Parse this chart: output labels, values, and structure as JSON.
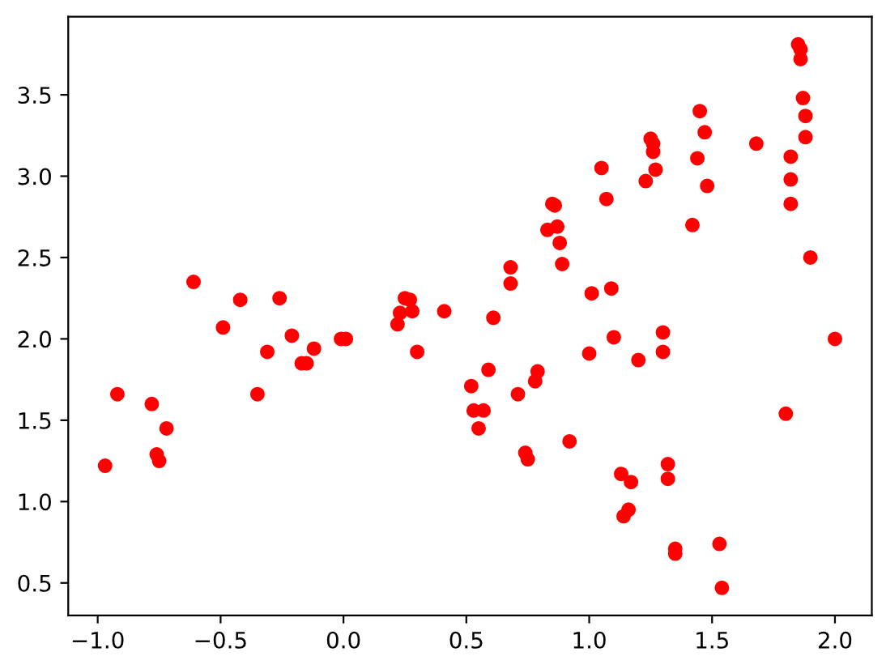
{
  "chart_data": {
    "type": "scatter",
    "marker": "circle",
    "grid": false,
    "legend": false,
    "xlim": [
      -1.12,
      2.15
    ],
    "ylim": [
      0.3,
      3.98
    ],
    "xticks": [
      {
        "value": -1.0,
        "label": "−1.0"
      },
      {
        "value": -0.5,
        "label": "−0.5"
      },
      {
        "value": 0.0,
        "label": "0.0"
      },
      {
        "value": 0.5,
        "label": "0.5"
      },
      {
        "value": 1.0,
        "label": "1.0"
      },
      {
        "value": 1.5,
        "label": "1.5"
      },
      {
        "value": 2.0,
        "label": "2.0"
      }
    ],
    "yticks": [
      {
        "value": 0.5,
        "label": "0.5"
      },
      {
        "value": 1.0,
        "label": "1.0"
      },
      {
        "value": 1.5,
        "label": "1.5"
      },
      {
        "value": 2.0,
        "label": "2.0"
      },
      {
        "value": 2.5,
        "label": "2.5"
      },
      {
        "value": 3.0,
        "label": "3.0"
      },
      {
        "value": 3.5,
        "label": "3.5"
      }
    ],
    "series": [
      {
        "color": "#ff0000",
        "x": [
          -0.97,
          -0.92,
          -0.78,
          -0.76,
          -0.75,
          -0.72,
          -0.61,
          -0.49,
          -0.42,
          -0.35,
          -0.31,
          -0.26,
          -0.21,
          -0.17,
          -0.15,
          -0.12,
          -0.01,
          0.01,
          0.22,
          0.23,
          0.25,
          0.27,
          0.28,
          0.3,
          0.41,
          0.52,
          0.53,
          0.55,
          0.57,
          0.59,
          0.61,
          0.68,
          0.68,
          0.71,
          0.74,
          0.75,
          0.78,
          0.79,
          0.83,
          0.85,
          0.86,
          0.87,
          0.88,
          0.89,
          0.92,
          1.0,
          1.01,
          1.05,
          1.07,
          1.09,
          1.1,
          1.13,
          1.14,
          1.16,
          1.17,
          1.2,
          1.23,
          1.25,
          1.26,
          1.26,
          1.27,
          1.3,
          1.3,
          1.32,
          1.32,
          1.35,
          1.35,
          1.42,
          1.44,
          1.45,
          1.47,
          1.48,
          1.53,
          1.54,
          1.68,
          1.8,
          1.82,
          1.82,
          1.82,
          1.85,
          1.86,
          1.86,
          1.87,
          1.88,
          1.88,
          1.9,
          2.0
        ],
        "values": [
          1.22,
          1.66,
          1.6,
          1.29,
          1.25,
          1.45,
          2.35,
          2.07,
          2.24,
          1.66,
          1.92,
          2.25,
          2.02,
          1.85,
          1.85,
          1.94,
          2.0,
          2.0,
          2.09,
          2.16,
          2.25,
          2.24,
          2.17,
          1.92,
          2.17,
          1.71,
          1.56,
          1.45,
          1.56,
          1.81,
          2.13,
          2.44,
          2.34,
          1.66,
          1.3,
          1.26,
          1.74,
          1.8,
          2.67,
          2.83,
          2.82,
          2.69,
          2.59,
          2.46,
          1.37,
          1.91,
          2.28,
          3.05,
          2.86,
          2.31,
          2.01,
          1.17,
          0.91,
          0.95,
          1.12,
          1.87,
          2.97,
          3.23,
          3.2,
          3.15,
          3.04,
          1.92,
          2.04,
          1.23,
          1.14,
          0.71,
          0.68,
          2.7,
          3.11,
          3.4,
          3.27,
          2.94,
          0.74,
          0.47,
          3.2,
          1.54,
          2.83,
          2.98,
          3.12,
          3.81,
          3.78,
          3.72,
          3.48,
          3.37,
          3.24,
          2.5,
          2.0
        ]
      }
    ]
  }
}
